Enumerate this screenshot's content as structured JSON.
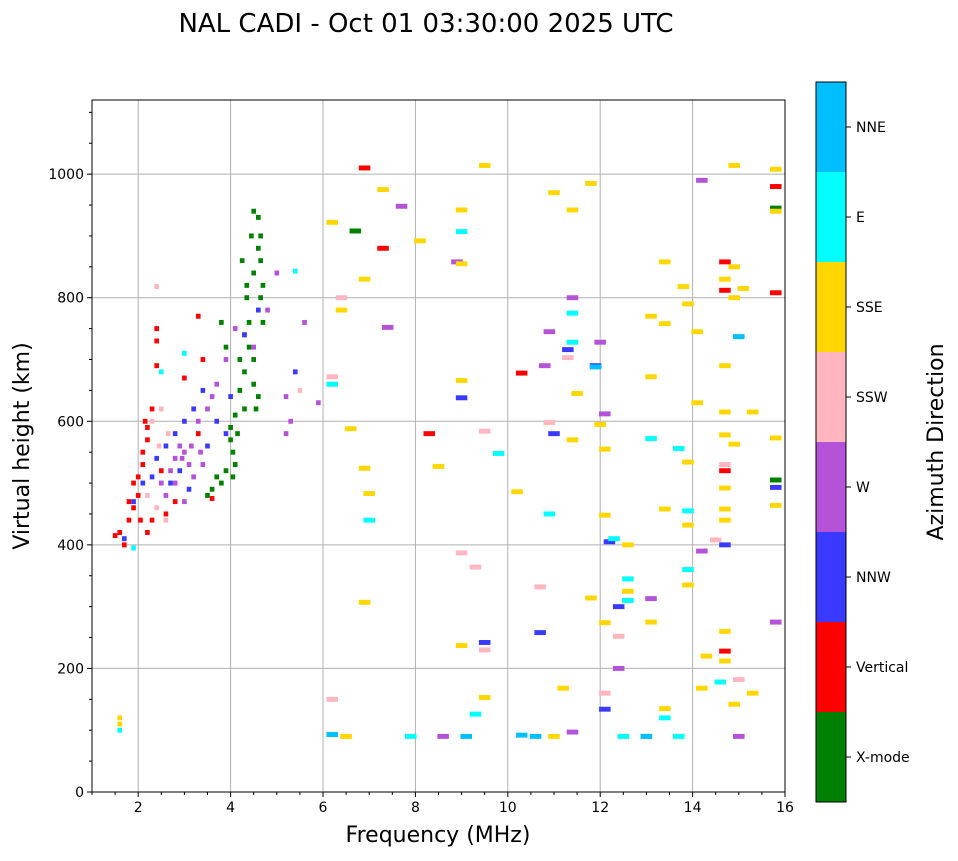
{
  "chart_data": {
    "type": "scatter",
    "title": "NAL CADI - Oct 01 03:30:00 2025 UTC",
    "xlabel": "Frequency (MHz)",
    "ylabel": "Virtual height (km)",
    "xlim": [
      1,
      16
    ],
    "ylim": [
      0,
      1120
    ],
    "xticks": [
      2,
      4,
      6,
      8,
      10,
      12,
      14,
      16
    ],
    "yticks": [
      0,
      200,
      400,
      600,
      800,
      1000
    ],
    "grid": true,
    "colorbar": {
      "label": "Azimuth Direction",
      "categories": [
        {
          "name": "X-mode",
          "color": "#008000"
        },
        {
          "name": "Vertical",
          "color": "#FF0000"
        },
        {
          "name": "NNW",
          "color": "#3A3AFF"
        },
        {
          "name": "W",
          "color": "#B452D8"
        },
        {
          "name": "SSW",
          "color": "#FFB6C1"
        },
        {
          "name": "SSE",
          "color": "#FFD700"
        },
        {
          "name": "E",
          "color": "#00FFFF"
        },
        {
          "name": "NNE",
          "color": "#00BFFF"
        }
      ]
    },
    "points_format": "[frequency_MHz, height_km, category_index]",
    "points": [
      [
        4.0,
        590,
        0
      ],
      [
        4.0,
        570,
        0
      ],
      [
        4.05,
        550,
        0
      ],
      [
        4.1,
        530,
        0
      ],
      [
        4.1,
        610,
        0
      ],
      [
        4.2,
        650,
        0
      ],
      [
        4.2,
        700,
        0
      ],
      [
        4.3,
        680,
        0
      ],
      [
        4.3,
        740,
        0
      ],
      [
        4.35,
        800,
        0
      ],
      [
        4.35,
        820,
        0
      ],
      [
        4.4,
        760,
        0
      ],
      [
        4.4,
        720,
        0
      ],
      [
        4.5,
        700,
        0
      ],
      [
        4.5,
        660,
        0
      ],
      [
        4.5,
        940,
        0
      ],
      [
        4.6,
        930,
        0
      ],
      [
        4.6,
        880,
        0
      ],
      [
        4.65,
        860,
        0
      ],
      [
        4.65,
        800,
        0
      ],
      [
        4.7,
        760,
        0
      ],
      [
        4.7,
        820,
        0
      ],
      [
        4.5,
        840,
        0
      ],
      [
        4.45,
        900,
        0
      ],
      [
        3.8,
        500,
        0
      ],
      [
        3.6,
        490,
        0
      ],
      [
        3.5,
        480,
        0
      ],
      [
        3.9,
        520,
        0
      ],
      [
        3.7,
        510,
        0
      ],
      [
        4.25,
        860,
        0
      ],
      [
        6.7,
        908,
        0
      ],
      [
        3.8,
        760,
        0
      ],
      [
        3.9,
        720,
        0
      ],
      [
        4.55,
        620,
        0
      ],
      [
        4.6,
        640,
        0
      ],
      [
        15.8,
        945,
        0
      ],
      [
        15.8,
        505,
        0
      ],
      [
        4.15,
        580,
        0
      ],
      [
        4.05,
        510,
        0
      ],
      [
        4.3,
        620,
        0
      ],
      [
        4.65,
        900,
        0
      ],
      [
        1.5,
        415,
        1
      ],
      [
        1.6,
        420,
        1
      ],
      [
        1.7,
        400,
        1
      ],
      [
        1.8,
        440,
        1
      ],
      [
        1.9,
        460,
        1
      ],
      [
        2.0,
        480,
        1
      ],
      [
        2.0,
        510,
        1
      ],
      [
        2.1,
        530,
        1
      ],
      [
        2.1,
        550,
        1
      ],
      [
        2.2,
        570,
        1
      ],
      [
        2.2,
        590,
        1
      ],
      [
        2.3,
        620,
        1
      ],
      [
        2.4,
        750,
        1
      ],
      [
        2.4,
        730,
        1
      ],
      [
        2.2,
        420,
        1
      ],
      [
        2.3,
        440,
        1
      ],
      [
        2.6,
        450,
        1
      ],
      [
        2.8,
        470,
        1
      ],
      [
        3.0,
        670,
        1
      ],
      [
        3.3,
        770,
        1
      ],
      [
        3.4,
        700,
        1
      ],
      [
        3.3,
        580,
        1
      ],
      [
        3.6,
        475,
        1
      ],
      [
        15.8,
        980,
        1
      ],
      [
        15.8,
        808,
        1
      ],
      [
        14.7,
        858,
        1
      ],
      [
        14.7,
        812,
        1
      ],
      [
        14.7,
        520,
        1
      ],
      [
        14.7,
        228,
        1
      ],
      [
        10.3,
        678,
        1
      ],
      [
        8.3,
        580,
        1
      ],
      [
        6.9,
        1010,
        1
      ],
      [
        7.3,
        880,
        1
      ],
      [
        2.4,
        690,
        1
      ],
      [
        1.9,
        500,
        1
      ],
      [
        1.8,
        470,
        1
      ],
      [
        2.05,
        440,
        1
      ],
      [
        2.15,
        600,
        1
      ],
      [
        2.5,
        520,
        1
      ],
      [
        1.7,
        410,
        2
      ],
      [
        1.9,
        470,
        2
      ],
      [
        2.1,
        500,
        2
      ],
      [
        2.4,
        540,
        2
      ],
      [
        2.6,
        560,
        2
      ],
      [
        2.8,
        580,
        2
      ],
      [
        3.0,
        600,
        2
      ],
      [
        3.2,
        620,
        2
      ],
      [
        3.4,
        650,
        2
      ],
      [
        3.7,
        600,
        2
      ],
      [
        3.9,
        580,
        2
      ],
      [
        4.0,
        640,
        2
      ],
      [
        4.3,
        740,
        2
      ],
      [
        4.6,
        780,
        2
      ],
      [
        2.9,
        520,
        2
      ],
      [
        3.1,
        490,
        2
      ],
      [
        9.0,
        638,
        2
      ],
      [
        9.5,
        242,
        2
      ],
      [
        10.7,
        258,
        2
      ],
      [
        11.0,
        580,
        2
      ],
      [
        11.3,
        716,
        2
      ],
      [
        11.9,
        690,
        2
      ],
      [
        12.1,
        134,
        2
      ],
      [
        12.2,
        405,
        2
      ],
      [
        12.4,
        300,
        2
      ],
      [
        15.8,
        493,
        2
      ],
      [
        14.7,
        400,
        2
      ],
      [
        2.7,
        500,
        2
      ],
      [
        5.4,
        680,
        2
      ],
      [
        2.3,
        510,
        2
      ],
      [
        3.5,
        560,
        2
      ],
      [
        2.5,
        500,
        3
      ],
      [
        2.7,
        520,
        3
      ],
      [
        2.8,
        540,
        3
      ],
      [
        2.9,
        560,
        3
      ],
      [
        3.0,
        550,
        3
      ],
      [
        3.1,
        530,
        3
      ],
      [
        3.2,
        510,
        3
      ],
      [
        3.3,
        600,
        3
      ],
      [
        3.5,
        620,
        3
      ],
      [
        3.6,
        640,
        3
      ],
      [
        3.7,
        660,
        3
      ],
      [
        3.9,
        700,
        3
      ],
      [
        4.1,
        750,
        3
      ],
      [
        4.5,
        720,
        3
      ],
      [
        4.8,
        780,
        3
      ],
      [
        5.0,
        840,
        3
      ],
      [
        5.2,
        580,
        3
      ],
      [
        5.3,
        600,
        3
      ],
      [
        5.2,
        640,
        3
      ],
      [
        5.6,
        760,
        3
      ],
      [
        5.9,
        630,
        3
      ],
      [
        2.6,
        480,
        3
      ],
      [
        2.8,
        500,
        3
      ],
      [
        3.0,
        470,
        3
      ],
      [
        3.4,
        530,
        3
      ],
      [
        8.9,
        858,
        3
      ],
      [
        10.8,
        690,
        3
      ],
      [
        10.9,
        745,
        3
      ],
      [
        11.4,
        800,
        3
      ],
      [
        12.0,
        728,
        3
      ],
      [
        12.1,
        612,
        3
      ],
      [
        12.4,
        200,
        3
      ],
      [
        13.1,
        313,
        3
      ],
      [
        14.2,
        390,
        3
      ],
      [
        14.2,
        990,
        3
      ],
      [
        15.8,
        275,
        3
      ],
      [
        15.0,
        90,
        3
      ],
      [
        8.6,
        90,
        3
      ],
      [
        11.4,
        97,
        3
      ],
      [
        7.7,
        948,
        3
      ],
      [
        7.4,
        752,
        3
      ],
      [
        2.95,
        540,
        3
      ],
      [
        3.15,
        560,
        3
      ],
      [
        3.35,
        550,
        3
      ],
      [
        2.4,
        818,
        4
      ],
      [
        2.3,
        600,
        4
      ],
      [
        2.5,
        620,
        4
      ],
      [
        2.4,
        460,
        4
      ],
      [
        2.6,
        440,
        4
      ],
      [
        2.2,
        480,
        4
      ],
      [
        5.5,
        650,
        4
      ],
      [
        6.2,
        672,
        4
      ],
      [
        6.4,
        800,
        4
      ],
      [
        6.2,
        150,
        4
      ],
      [
        9.0,
        387,
        4
      ],
      [
        9.3,
        364,
        4
      ],
      [
        9.5,
        584,
        4
      ],
      [
        9.5,
        230,
        4
      ],
      [
        10.7,
        332,
        4
      ],
      [
        10.9,
        598,
        4
      ],
      [
        11.3,
        703,
        4
      ],
      [
        12.1,
        160,
        4
      ],
      [
        12.4,
        252,
        4
      ],
      [
        14.5,
        408,
        4
      ],
      [
        14.7,
        530,
        4
      ],
      [
        15.0,
        182,
        4
      ],
      [
        2.65,
        580,
        4
      ],
      [
        2.45,
        560,
        4
      ],
      [
        1.6,
        110,
        5
      ],
      [
        1.6,
        120,
        5
      ],
      [
        6.2,
        922,
        5
      ],
      [
        6.4,
        780,
        5
      ],
      [
        6.9,
        830,
        5
      ],
      [
        6.9,
        524,
        5
      ],
      [
        6.9,
        307,
        5
      ],
      [
        7.3,
        975,
        5
      ],
      [
        8.1,
        892,
        5
      ],
      [
        8.5,
        527,
        5
      ],
      [
        9.0,
        942,
        5
      ],
      [
        9.0,
        855,
        5
      ],
      [
        9.0,
        666,
        5
      ],
      [
        9.0,
        237,
        5
      ],
      [
        9.5,
        1014,
        5
      ],
      [
        9.5,
        153,
        5
      ],
      [
        10.2,
        486,
        5
      ],
      [
        11.0,
        970,
        5
      ],
      [
        11.2,
        168,
        5
      ],
      [
        11.4,
        942,
        5
      ],
      [
        11.4,
        570,
        5
      ],
      [
        11.5,
        645,
        5
      ],
      [
        11.8,
        985,
        5
      ],
      [
        11.8,
        314,
        5
      ],
      [
        12.0,
        595,
        5
      ],
      [
        12.1,
        555,
        5
      ],
      [
        12.1,
        448,
        5
      ],
      [
        12.1,
        274,
        5
      ],
      [
        12.6,
        400,
        5
      ],
      [
        12.6,
        325,
        5
      ],
      [
        13.1,
        770,
        5
      ],
      [
        13.1,
        672,
        5
      ],
      [
        13.1,
        275,
        5
      ],
      [
        13.4,
        858,
        5
      ],
      [
        13.4,
        758,
        5
      ],
      [
        13.4,
        458,
        5
      ],
      [
        13.4,
        135,
        5
      ],
      [
        13.8,
        818,
        5
      ],
      [
        13.9,
        790,
        5
      ],
      [
        13.9,
        534,
        5
      ],
      [
        13.9,
        432,
        5
      ],
      [
        13.9,
        335,
        5
      ],
      [
        14.1,
        745,
        5
      ],
      [
        14.1,
        630,
        5
      ],
      [
        14.2,
        168,
        5
      ],
      [
        14.3,
        220,
        5
      ],
      [
        14.7,
        830,
        5
      ],
      [
        14.7,
        690,
        5
      ],
      [
        14.7,
        615,
        5
      ],
      [
        14.7,
        578,
        5
      ],
      [
        14.7,
        492,
        5
      ],
      [
        14.7,
        458,
        5
      ],
      [
        14.7,
        440,
        5
      ],
      [
        14.7,
        260,
        5
      ],
      [
        14.7,
        212,
        5
      ],
      [
        14.9,
        1014,
        5
      ],
      [
        14.9,
        850,
        5
      ],
      [
        14.9,
        800,
        5
      ],
      [
        14.9,
        563,
        5
      ],
      [
        14.9,
        142,
        5
      ],
      [
        15.1,
        815,
        5
      ],
      [
        15.3,
        615,
        5
      ],
      [
        15.3,
        160,
        5
      ],
      [
        15.8,
        1008,
        5
      ],
      [
        15.8,
        940,
        5
      ],
      [
        15.8,
        573,
        5
      ],
      [
        15.8,
        464,
        5
      ],
      [
        6.5,
        90,
        5
      ],
      [
        11.0,
        90,
        5
      ],
      [
        6.6,
        588,
        5
      ],
      [
        7.0,
        483,
        5
      ],
      [
        1.6,
        100,
        6
      ],
      [
        5.4,
        843,
        6
      ],
      [
        6.2,
        660,
        6
      ],
      [
        7.0,
        440,
        6
      ],
      [
        7.9,
        90,
        6
      ],
      [
        9.0,
        907,
        6
      ],
      [
        9.3,
        126,
        6
      ],
      [
        9.8,
        548,
        6
      ],
      [
        10.9,
        450,
        6
      ],
      [
        11.4,
        728,
        6
      ],
      [
        11.4,
        775,
        6
      ],
      [
        12.3,
        410,
        6
      ],
      [
        12.6,
        345,
        6
      ],
      [
        12.6,
        310,
        6
      ],
      [
        13.1,
        572,
        6
      ],
      [
        13.4,
        120,
        6
      ],
      [
        13.7,
        556,
        6
      ],
      [
        13.9,
        455,
        6
      ],
      [
        13.9,
        360,
        6
      ],
      [
        14.6,
        178,
        6
      ],
      [
        12.5,
        90,
        6
      ],
      [
        13.0,
        90,
        6
      ],
      [
        13.7,
        90,
        6
      ],
      [
        1.9,
        395,
        6
      ],
      [
        2.5,
        680,
        6
      ],
      [
        3.0,
        710,
        6
      ],
      [
        6.2,
        93,
        7
      ],
      [
        9.1,
        90,
        7
      ],
      [
        10.3,
        92,
        7
      ],
      [
        10.6,
        90,
        7
      ],
      [
        15.0,
        737,
        7
      ],
      [
        11.9,
        688,
        7
      ],
      [
        13.0,
        90,
        7
      ]
    ]
  }
}
